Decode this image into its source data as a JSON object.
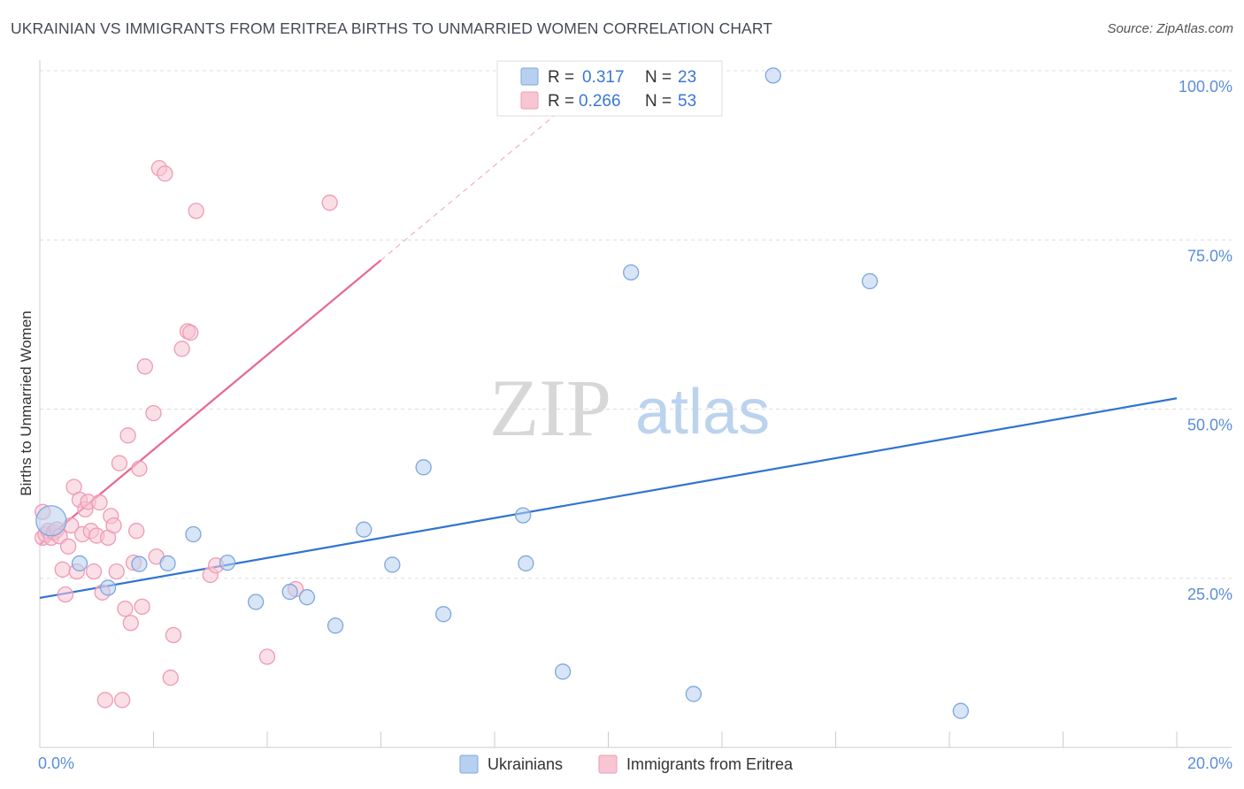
{
  "title": "UKRAINIAN VS IMMIGRANTS FROM ERITREA BIRTHS TO UNMARRIED WOMEN CORRELATION CHART",
  "source": "Source: ZipAtlas.com",
  "watermark": {
    "zip": "ZIP",
    "atlas": "atlas"
  },
  "colors": {
    "blue_fill": "#b7d0f0",
    "blue_stroke": "#7da7dd",
    "blue_line": "#2f74d0",
    "pink_fill": "#f8c5d3",
    "pink_stroke": "#ef9ab4",
    "pink_line": "#e8668f",
    "grid": "#dddddd",
    "tick_label": "#5b8ed6"
  },
  "legend": {
    "rows": [
      {
        "r_label": "R =",
        "r_value": "0.317",
        "n_label": "N =",
        "n_value": "23"
      },
      {
        "r_label": "R =",
        "r_value": "0.266",
        "n_label": "N =",
        "n_value": "53"
      }
    ]
  },
  "chart_data": {
    "type": "scatter",
    "xlabel": "",
    "ylabel": "Births to Unmarried Women",
    "xlim": [
      0,
      20
    ],
    "ylim": [
      0,
      100
    ],
    "x_tick_labels": [
      {
        "value": 0,
        "label": "0.0%"
      },
      {
        "value": 20,
        "label": "20.0%"
      }
    ],
    "y_tick_labels": [
      {
        "value": 25,
        "label": "25.0%"
      },
      {
        "value": 50,
        "label": "50.0%"
      },
      {
        "value": 75,
        "label": "75.0%"
      },
      {
        "value": 100,
        "label": "100.0%"
      }
    ],
    "series": [
      {
        "name": "Ukrainians",
        "color": "blue",
        "trend": {
          "x0": 0,
          "y0": 22.1,
          "x1": 20,
          "y1": 51.6,
          "solid_to": 20
        },
        "points": [
          {
            "x": 0.2,
            "y": 33.5,
            "big": true
          },
          {
            "x": 0.7,
            "y": 27.2
          },
          {
            "x": 1.2,
            "y": 23.6
          },
          {
            "x": 1.75,
            "y": 27.1
          },
          {
            "x": 2.25,
            "y": 27.2
          },
          {
            "x": 2.7,
            "y": 31.5
          },
          {
            "x": 3.3,
            "y": 27.3
          },
          {
            "x": 3.8,
            "y": 21.5
          },
          {
            "x": 4.4,
            "y": 23.0
          },
          {
            "x": 4.7,
            "y": 22.2
          },
          {
            "x": 5.2,
            "y": 18.0
          },
          {
            "x": 5.7,
            "y": 32.2
          },
          {
            "x": 6.2,
            "y": 27.0
          },
          {
            "x": 6.75,
            "y": 41.4
          },
          {
            "x": 7.1,
            "y": 19.7
          },
          {
            "x": 8.5,
            "y": 34.3
          },
          {
            "x": 8.55,
            "y": 27.2
          },
          {
            "x": 9.2,
            "y": 11.2
          },
          {
            "x": 10.4,
            "y": 70.2
          },
          {
            "x": 11.5,
            "y": 7.9
          },
          {
            "x": 12.9,
            "y": 99.3
          },
          {
            "x": 14.6,
            "y": 68.9
          },
          {
            "x": 16.2,
            "y": 5.4
          }
        ]
      },
      {
        "name": "Immigrants from Eritrea",
        "color": "pink",
        "trend": {
          "x0": 0,
          "y0": 30.0,
          "x1": 20,
          "y1": 170.0,
          "solid_to": 6.0
        },
        "points": [
          {
            "x": 0.05,
            "y": 34.8
          },
          {
            "x": 0.05,
            "y": 31.0
          },
          {
            "x": 0.1,
            "y": 31.5
          },
          {
            "x": 0.15,
            "y": 32.0
          },
          {
            "x": 0.2,
            "y": 31.0
          },
          {
            "x": 0.25,
            "y": 31.8
          },
          {
            "x": 0.3,
            "y": 32.2
          },
          {
            "x": 0.35,
            "y": 31.2
          },
          {
            "x": 0.4,
            "y": 26.3
          },
          {
            "x": 0.45,
            "y": 22.6
          },
          {
            "x": 0.5,
            "y": 29.7
          },
          {
            "x": 0.55,
            "y": 32.8
          },
          {
            "x": 0.6,
            "y": 38.5
          },
          {
            "x": 0.65,
            "y": 26.0
          },
          {
            "x": 0.7,
            "y": 36.6
          },
          {
            "x": 0.75,
            "y": 31.5
          },
          {
            "x": 0.8,
            "y": 35.2
          },
          {
            "x": 0.85,
            "y": 36.3
          },
          {
            "x": 0.9,
            "y": 32.0
          },
          {
            "x": 0.95,
            "y": 26.0
          },
          {
            "x": 1.0,
            "y": 31.3
          },
          {
            "x": 1.05,
            "y": 36.2
          },
          {
            "x": 1.1,
            "y": 22.9
          },
          {
            "x": 1.15,
            "y": 7.0
          },
          {
            "x": 1.2,
            "y": 31.0
          },
          {
            "x": 1.25,
            "y": 34.2
          },
          {
            "x": 1.3,
            "y": 32.8
          },
          {
            "x": 1.35,
            "y": 26.0
          },
          {
            "x": 1.4,
            "y": 42.0
          },
          {
            "x": 1.45,
            "y": 7.0
          },
          {
            "x": 1.5,
            "y": 20.5
          },
          {
            "x": 1.55,
            "y": 46.1
          },
          {
            "x": 1.6,
            "y": 18.4
          },
          {
            "x": 1.65,
            "y": 27.3
          },
          {
            "x": 1.7,
            "y": 32.0
          },
          {
            "x": 1.75,
            "y": 41.2
          },
          {
            "x": 1.8,
            "y": 20.8
          },
          {
            "x": 1.85,
            "y": 56.3
          },
          {
            "x": 2.0,
            "y": 49.4
          },
          {
            "x": 2.05,
            "y": 28.2
          },
          {
            "x": 2.1,
            "y": 85.6
          },
          {
            "x": 2.2,
            "y": 84.8
          },
          {
            "x": 2.3,
            "y": 10.3
          },
          {
            "x": 2.35,
            "y": 16.6
          },
          {
            "x": 2.5,
            "y": 58.9
          },
          {
            "x": 2.6,
            "y": 61.5
          },
          {
            "x": 2.65,
            "y": 61.3
          },
          {
            "x": 2.75,
            "y": 79.3
          },
          {
            "x": 3.0,
            "y": 25.5
          },
          {
            "x": 3.1,
            "y": 26.9
          },
          {
            "x": 4.0,
            "y": 13.4
          },
          {
            "x": 4.5,
            "y": 23.4
          },
          {
            "x": 5.1,
            "y": 80.5
          }
        ]
      }
    ],
    "bottom_legend": [
      "Ukrainians",
      "Immigrants from Eritrea"
    ]
  }
}
